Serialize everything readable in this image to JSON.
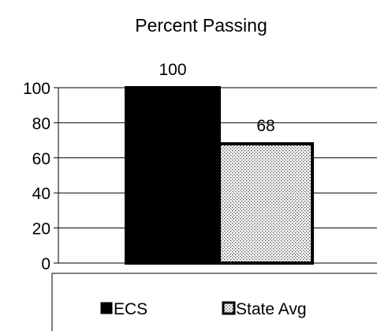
{
  "chart_data": {
    "type": "bar",
    "title": "Percent Passing",
    "xlabel": "",
    "ylabel": "",
    "ylim": [
      0,
      100
    ],
    "yticks": [
      0,
      20,
      40,
      60,
      80,
      100
    ],
    "grid": true,
    "legend_position": "bottom",
    "series": [
      {
        "name": "ECS",
        "value": 100,
        "label": "100",
        "fill": "solid-black",
        "color": "#000000"
      },
      {
        "name": "State Avg",
        "value": 68,
        "label": "68",
        "fill": "dotted",
        "color": "#000000"
      }
    ]
  }
}
